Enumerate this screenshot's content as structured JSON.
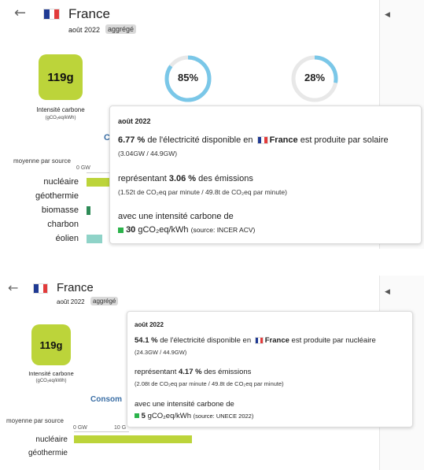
{
  "top": {
    "header": {
      "back_icon": "arrow-left-icon",
      "country": "France",
      "date": "août 2022",
      "badge": "aggrégé"
    },
    "intensity": {
      "value": "119g",
      "label": "Intensité carbone",
      "unit": "(gCO₂eq/kWh)"
    },
    "donuts": [
      {
        "label": "85%",
        "fraction": 0.85,
        "color": "#7ac7e8"
      },
      {
        "label": "28%",
        "fraction": 0.28,
        "color": "#7ac7e8"
      }
    ],
    "section_title_partial": "C",
    "axis": {
      "heading": "moyenne par source",
      "tick0": "0 GW"
    },
    "sources": [
      {
        "label": "nucléaire",
        "color": "#bcd43a",
        "bar_fraction": 1.0
      },
      {
        "label": "géothermie",
        "color": "#bcd43a",
        "bar_fraction": 0
      },
      {
        "label": "biomasse",
        "color": "#2e8b57",
        "bar_fraction": 0.2
      },
      {
        "label": "charbon",
        "color": "#999999",
        "bar_fraction": 0
      },
      {
        "label": "éolien",
        "color": "#8fd3c8",
        "bar_fraction": 0.6
      }
    ],
    "tooltip": {
      "title": "août 2022",
      "line1_pct": "6.77 %",
      "line1_mid": "de l'électricité disponible en",
      "line1_country": "France",
      "line1_end": "est produite par solaire",
      "line1_sub": "(3.04GW / 44.9GW)",
      "line2_start": "représentant",
      "line2_pct": "3.06 %",
      "line2_end": "des émissions",
      "line2_sub": "(1.52t de CO₂eq par minute / 49.8t de CO₂eq par minute)",
      "line3": "avec une intensité carbone de",
      "line3_value": "30",
      "line3_unit": "gCO₂eq/kWh",
      "line3_source": "(source: INCER ACV)",
      "square_color": "#2bb34b"
    }
  },
  "bottom": {
    "header": {
      "back_icon": "arrow-left-icon",
      "country": "France",
      "date": "août 2022",
      "badge": "aggrégé"
    },
    "intensity": {
      "value": "119g",
      "label": "Intensité carbone",
      "unit": "(gCO₂eq/kWh)"
    },
    "section_title_partial": "Consom",
    "axis": {
      "heading": "moyenne par source",
      "tick0": "0 GW",
      "tick1": "10 G"
    },
    "sources": [
      {
        "label": "nucléaire",
        "color": "#bcd43a",
        "bar_fraction": 1.0
      },
      {
        "label": "géothermie",
        "color": "#bcd43a",
        "bar_fraction": 0
      }
    ],
    "tooltip": {
      "title": "août 2022",
      "line1_pct": "54.1 %",
      "line1_mid": "de l'électricité disponible en",
      "line1_country": "France",
      "line1_end": "est produite par nucléaire",
      "line1_sub": "(24.3GW / 44.9GW)",
      "line2_start": "représentant",
      "line2_pct": "4.17 %",
      "line2_end": "des émissions",
      "line2_sub": "(2.08t de CO₂eq par minute / 49.8t de CO₂eq par minute)",
      "line3": "avec une intensité carbone de",
      "line3_value": "5",
      "line3_unit": "gCO₂eq/kWh",
      "line3_source": "(source: UNECE 2022)",
      "square_color": "#2bb34b"
    }
  },
  "collapse_icon": "caret-left-icon"
}
